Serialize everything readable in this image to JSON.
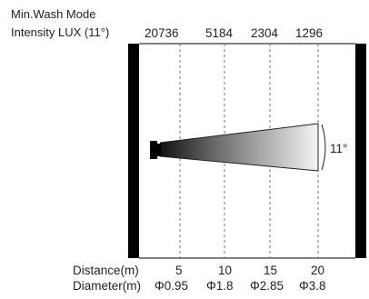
{
  "header": {
    "mode_label": "Min.Wash Mode",
    "intensity_label": "Intensity LUX (11°)"
  },
  "lux_values": [
    "20736",
    "5184",
    "2304",
    "1296"
  ],
  "beam_angle_label": "11°",
  "distance_row": {
    "label": "Distance(m)",
    "values": [
      "5",
      "10",
      "15",
      "20"
    ]
  },
  "diameter_row": {
    "label": "Diameter(m)",
    "values": [
      "Φ0.95",
      "Φ1.8",
      "Φ2.85",
      "Φ3.8"
    ]
  },
  "colors": {
    "panel": "#000000",
    "beam_dark": "#111111",
    "beam_light": "#f4f4f4",
    "gridline": "#777777"
  }
}
